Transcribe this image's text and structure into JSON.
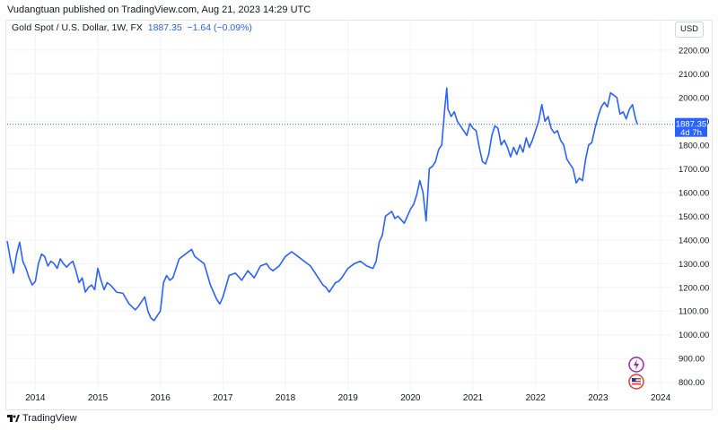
{
  "header": {
    "published": "Vudangtuan published on TradingView.com, Aug 21, 2023 14:29 UTC"
  },
  "legend": {
    "symbol": "Gold Spot / U.S. Dollar, 1W, FX",
    "last": "1887.35",
    "change": "−1.64 (−0.09%)"
  },
  "currency_button": "USD",
  "price_tag": {
    "price": "1887.35",
    "countdown": "4d 7h"
  },
  "footer": {
    "brand": "TradingView"
  },
  "icons": {
    "flash": "lightning-icon",
    "flag": "us-flag-icon"
  },
  "colors": {
    "line": "#2962ff",
    "tag_bg": "#2962ff",
    "grid": "#f0f3fa",
    "text": "#131722"
  },
  "chart_data": {
    "type": "line",
    "title": "Gold Spot / U.S. Dollar, 1W, FX",
    "xlabel": "",
    "ylabel": "",
    "ylim": [
      780,
      2260
    ],
    "xlim": [
      2013.55,
      2024.2
    ],
    "y_ticks": [
      "800.00",
      "900.00",
      "1000.00",
      "1100.00",
      "1200.00",
      "1300.00",
      "1400.00",
      "1500.00",
      "1600.00",
      "1700.00",
      "1800.00",
      "1900.00",
      "2000.00",
      "2100.00",
      "2200.00"
    ],
    "x_ticks": [
      "2014",
      "2015",
      "2016",
      "2017",
      "2018",
      "2019",
      "2020",
      "2021",
      "2022",
      "2023",
      "2024"
    ],
    "grid": true,
    "series": [
      {
        "x": [
          2013.55,
          2013.6,
          2013.65,
          2013.7,
          2013.75,
          2013.8,
          2013.85,
          2013.9,
          2013.95,
          2014.0,
          2014.05,
          2014.1,
          2014.15,
          2014.2,
          2014.25,
          2014.3,
          2014.35,
          2014.4,
          2014.45,
          2014.5,
          2014.55,
          2014.6,
          2014.65,
          2014.7,
          2014.75,
          2014.8,
          2014.85,
          2014.9,
          2014.95,
          2015.0,
          2015.05,
          2015.1,
          2015.15,
          2015.2,
          2015.3,
          2015.4,
          2015.5,
          2015.6,
          2015.65,
          2015.7,
          2015.75,
          2015.8,
          2015.85,
          2015.9,
          2015.95,
          2016.0,
          2016.05,
          2016.1,
          2016.15,
          2016.2,
          2016.3,
          2016.4,
          2016.5,
          2016.55,
          2016.6,
          2016.7,
          2016.8,
          2016.9,
          2016.95,
          2017.0,
          2017.1,
          2017.2,
          2017.3,
          2017.4,
          2017.5,
          2017.6,
          2017.7,
          2017.75,
          2017.8,
          2017.9,
          2018.0,
          2018.1,
          2018.2,
          2018.3,
          2018.4,
          2018.5,
          2018.6,
          2018.65,
          2018.7,
          2018.75,
          2018.8,
          2018.85,
          2018.9,
          2019.0,
          2019.1,
          2019.2,
          2019.3,
          2019.4,
          2019.45,
          2019.5,
          2019.55,
          2019.6,
          2019.7,
          2019.75,
          2019.8,
          2019.9,
          2020.0,
          2020.05,
          2020.1,
          2020.15,
          2020.2,
          2020.25,
          2020.3,
          2020.35,
          2020.4,
          2020.45,
          2020.5,
          2020.55,
          2020.58,
          2020.6,
          2020.65,
          2020.7,
          2020.75,
          2020.8,
          2020.85,
          2020.9,
          2020.95,
          2021.0,
          2021.05,
          2021.1,
          2021.15,
          2021.2,
          2021.25,
          2021.3,
          2021.35,
          2021.4,
          2021.45,
          2021.5,
          2021.55,
          2021.6,
          2021.65,
          2021.7,
          2021.75,
          2021.8,
          2021.85,
          2021.9,
          2021.95,
          2022.0,
          2022.05,
          2022.1,
          2022.15,
          2022.2,
          2022.25,
          2022.3,
          2022.35,
          2022.4,
          2022.45,
          2022.5,
          2022.55,
          2022.6,
          2022.65,
          2022.7,
          2022.75,
          2022.8,
          2022.85,
          2022.9,
          2022.95,
          2023.0,
          2023.05,
          2023.1,
          2023.15,
          2023.2,
          2023.25,
          2023.3,
          2023.35,
          2023.4,
          2023.45,
          2023.5,
          2023.55,
          2023.6,
          2023.63
        ],
        "y": [
          1395,
          1320,
          1260,
          1340,
          1390,
          1310,
          1280,
          1240,
          1210,
          1225,
          1300,
          1340,
          1330,
          1290,
          1310,
          1300,
          1280,
          1320,
          1300,
          1285,
          1300,
          1310,
          1270,
          1220,
          1240,
          1180,
          1200,
          1210,
          1190,
          1280,
          1230,
          1190,
          1220,
          1210,
          1180,
          1175,
          1130,
          1105,
          1120,
          1140,
          1160,
          1100,
          1070,
          1060,
          1080,
          1100,
          1220,
          1250,
          1230,
          1240,
          1320,
          1340,
          1360,
          1330,
          1320,
          1300,
          1210,
          1150,
          1130,
          1160,
          1250,
          1260,
          1230,
          1270,
          1240,
          1290,
          1300,
          1280,
          1270,
          1290,
          1330,
          1350,
          1330,
          1310,
          1290,
          1250,
          1210,
          1200,
          1180,
          1200,
          1220,
          1225,
          1240,
          1280,
          1300,
          1310,
          1290,
          1280,
          1310,
          1390,
          1420,
          1500,
          1520,
          1490,
          1500,
          1470,
          1530,
          1550,
          1590,
          1650,
          1600,
          1480,
          1700,
          1710,
          1730,
          1780,
          1800,
          1960,
          2040,
          1950,
          1920,
          1940,
          1900,
          1880,
          1860,
          1840,
          1890,
          1870,
          1860,
          1790,
          1730,
          1720,
          1760,
          1840,
          1880,
          1870,
          1800,
          1820,
          1790,
          1750,
          1790,
          1760,
          1800,
          1770,
          1830,
          1790,
          1820,
          1860,
          1900,
          1970,
          1900,
          1920,
          1870,
          1850,
          1860,
          1820,
          1800,
          1740,
          1720,
          1700,
          1640,
          1660,
          1650,
          1740,
          1800,
          1810,
          1870,
          1920,
          1960,
          1980,
          1960,
          2020,
          2010,
          2000,
          1930,
          1940,
          1910,
          1950,
          1970,
          1910,
          1887
        ]
      }
    ],
    "last_value": 1887.35
  }
}
